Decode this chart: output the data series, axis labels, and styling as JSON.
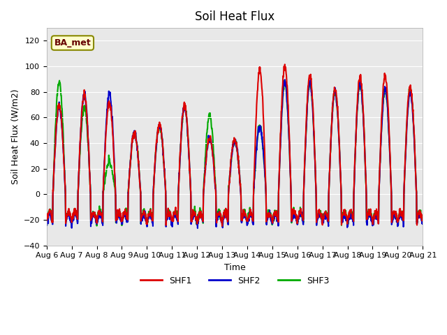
{
  "title": "Soil Heat Flux",
  "ylabel": "Soil Heat Flux (W/m2)",
  "xlabel": "Time",
  "xlim_days": [
    0,
    15
  ],
  "ylim": [
    -40,
    130
  ],
  "yticks": [
    -40,
    -20,
    0,
    20,
    40,
    60,
    80,
    100,
    120
  ],
  "bg_color": "#e8e8e8",
  "colors": {
    "SHF1": "#dd0000",
    "SHF2": "#0000cc",
    "SHF3": "#00aa00"
  },
  "legend_label": "BA_met",
  "start_day": 6,
  "end_day": 21,
  "lw": 1.5
}
